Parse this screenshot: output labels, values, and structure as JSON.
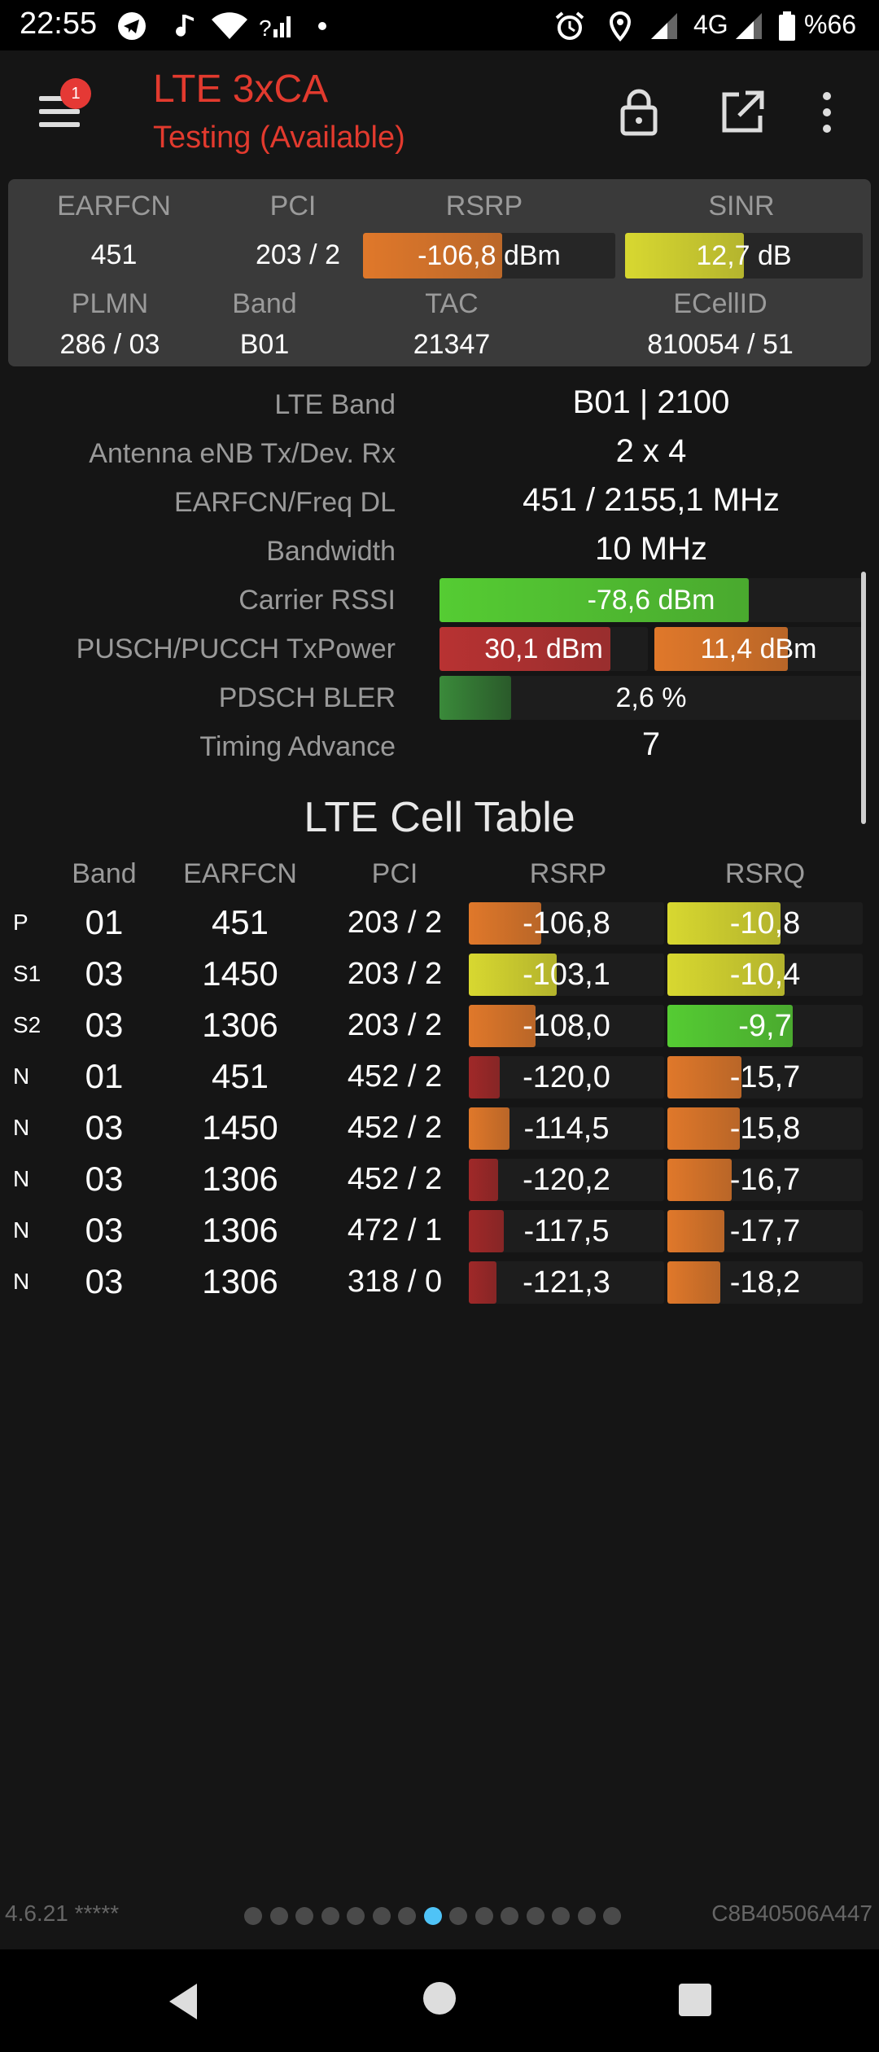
{
  "status_bar": {
    "time": "22:55",
    "network_type": "4G",
    "battery": "%66",
    "icons": [
      "telegram-icon",
      "music-icon",
      "wifi-icon",
      "signal-question-icon",
      "dot-icon",
      "alarm-icon",
      "location-icon",
      "signal-icon",
      "signal-icon",
      "battery-icon"
    ]
  },
  "toolbar": {
    "title": "LTE 3xCA",
    "subtitle": "Testing (Available)",
    "menu_badge": "1",
    "icons": [
      "menu-icon",
      "lock-icon",
      "open-external-icon",
      "more-vert-icon"
    ]
  },
  "summary": {
    "labels": {
      "earfcn": "EARFCN",
      "pci": "PCI",
      "rsrp": "RSRP",
      "sinr": "SINR",
      "plmn": "PLMN",
      "band": "Band",
      "tac": "TAC",
      "ecellid": "ECellID"
    },
    "earfcn": "451",
    "pci": "203 / 2",
    "rsrp": {
      "text": "-106,8 dBm",
      "level": 0.55,
      "color": "#e0782a"
    },
    "sinr": {
      "text": "12,7 dB",
      "level": 0.5,
      "color": "#d8d830"
    },
    "plmn": "286 / 03",
    "band": "B01",
    "tac": "21347",
    "ecellid": "810054 / 51"
  },
  "details": {
    "lte_band": {
      "label": "LTE Band",
      "value": "B01 | 2100"
    },
    "antenna": {
      "label": "Antenna eNB Tx/Dev. Rx",
      "value": "2 x 4"
    },
    "earfcn_freq": {
      "label": "EARFCN/Freq DL",
      "value": "451 / 2155,1 MHz"
    },
    "bandwidth": {
      "label": "Bandwidth",
      "value": "10 MHz"
    },
    "carrier_rssi": {
      "label": "Carrier RSSI",
      "text": "-78,6 dBm",
      "level": 0.73,
      "color": "#55cc33"
    },
    "txpower": {
      "label": "PUSCH/PUCCH TxPower",
      "pusch": {
        "text": "30,1 dBm",
        "level": 0.82,
        "color": "#b83232"
      },
      "pucch": {
        "text": "11,4 dBm",
        "level": 0.64,
        "color": "#e0782a"
      }
    },
    "pdsch_bler": {
      "label": "PDSCH BLER",
      "text": "2,6 %",
      "level": 0.17,
      "color": "#3a8a3a"
    },
    "timing_advance": {
      "label": "Timing Advance",
      "value": "7"
    }
  },
  "cell_table": {
    "title": "LTE Cell Table",
    "headers": {
      "band": "Band",
      "earfcn": "EARFCN",
      "pci": "PCI",
      "rsrp": "RSRP",
      "rsrq": "RSRQ"
    },
    "rows": [
      {
        "type": "P",
        "band": "01",
        "earfcn": "451",
        "pci": "203 / 2",
        "rsrp": "-106,8",
        "rsrp_level": 0.37,
        "rsrp_color": "#e0782a",
        "rsrq": "-10,8",
        "rsrq_level": 0.58,
        "rsrq_color": "#d8d830"
      },
      {
        "type": "S1",
        "band": "03",
        "earfcn": "1450",
        "pci": "203 / 2",
        "rsrp": "-103,1",
        "rsrp_level": 0.45,
        "rsrp_color": "#d8d830",
        "rsrq": "-10,4",
        "rsrq_level": 0.6,
        "rsrq_color": "#d8d830"
      },
      {
        "type": "S2",
        "band": "03",
        "earfcn": "1306",
        "pci": "203 / 2",
        "rsrp": "-108,0",
        "rsrp_level": 0.34,
        "rsrp_color": "#e0782a",
        "rsrq": "-9,7",
        "rsrq_level": 0.64,
        "rsrq_color": "#55cc33"
      },
      {
        "type": "N",
        "band": "01",
        "earfcn": "451",
        "pci": "452 / 2",
        "rsrp": "-120,0",
        "rsrp_level": 0.16,
        "rsrp_color": "#a02828",
        "rsrq": "-15,7",
        "rsrq_level": 0.38,
        "rsrq_color": "#e0782a"
      },
      {
        "type": "N",
        "band": "03",
        "earfcn": "1450",
        "pci": "452 / 2",
        "rsrp": "-114,5",
        "rsrp_level": 0.21,
        "rsrp_color": "#e0782a",
        "rsrq": "-15,8",
        "rsrq_level": 0.37,
        "rsrq_color": "#e0782a"
      },
      {
        "type": "N",
        "band": "03",
        "earfcn": "1306",
        "pci": "452 / 2",
        "rsrp": "-120,2",
        "rsrp_level": 0.15,
        "rsrp_color": "#a02828",
        "rsrq": "-16,7",
        "rsrq_level": 0.33,
        "rsrq_color": "#e0782a"
      },
      {
        "type": "N",
        "band": "03",
        "earfcn": "1306",
        "pci": "472 / 1",
        "rsrp": "-117,5",
        "rsrp_level": 0.18,
        "rsrp_color": "#a02828",
        "rsrq": "-17,7",
        "rsrq_level": 0.29,
        "rsrq_color": "#e0782a"
      },
      {
        "type": "N",
        "band": "03",
        "earfcn": "1306",
        "pci": "318 / 0",
        "rsrp": "-121,3",
        "rsrp_level": 0.14,
        "rsrp_color": "#a02828",
        "rsrq": "-18,2",
        "rsrq_level": 0.27,
        "rsrq_color": "#e0782a"
      }
    ]
  },
  "footer": {
    "version": "4.6.21 *****",
    "device_id": "C8B40506A447",
    "page_count": 15,
    "active_page": 7
  },
  "nav_bar": {
    "icons": [
      "back-icon",
      "home-icon",
      "recents-icon"
    ]
  }
}
